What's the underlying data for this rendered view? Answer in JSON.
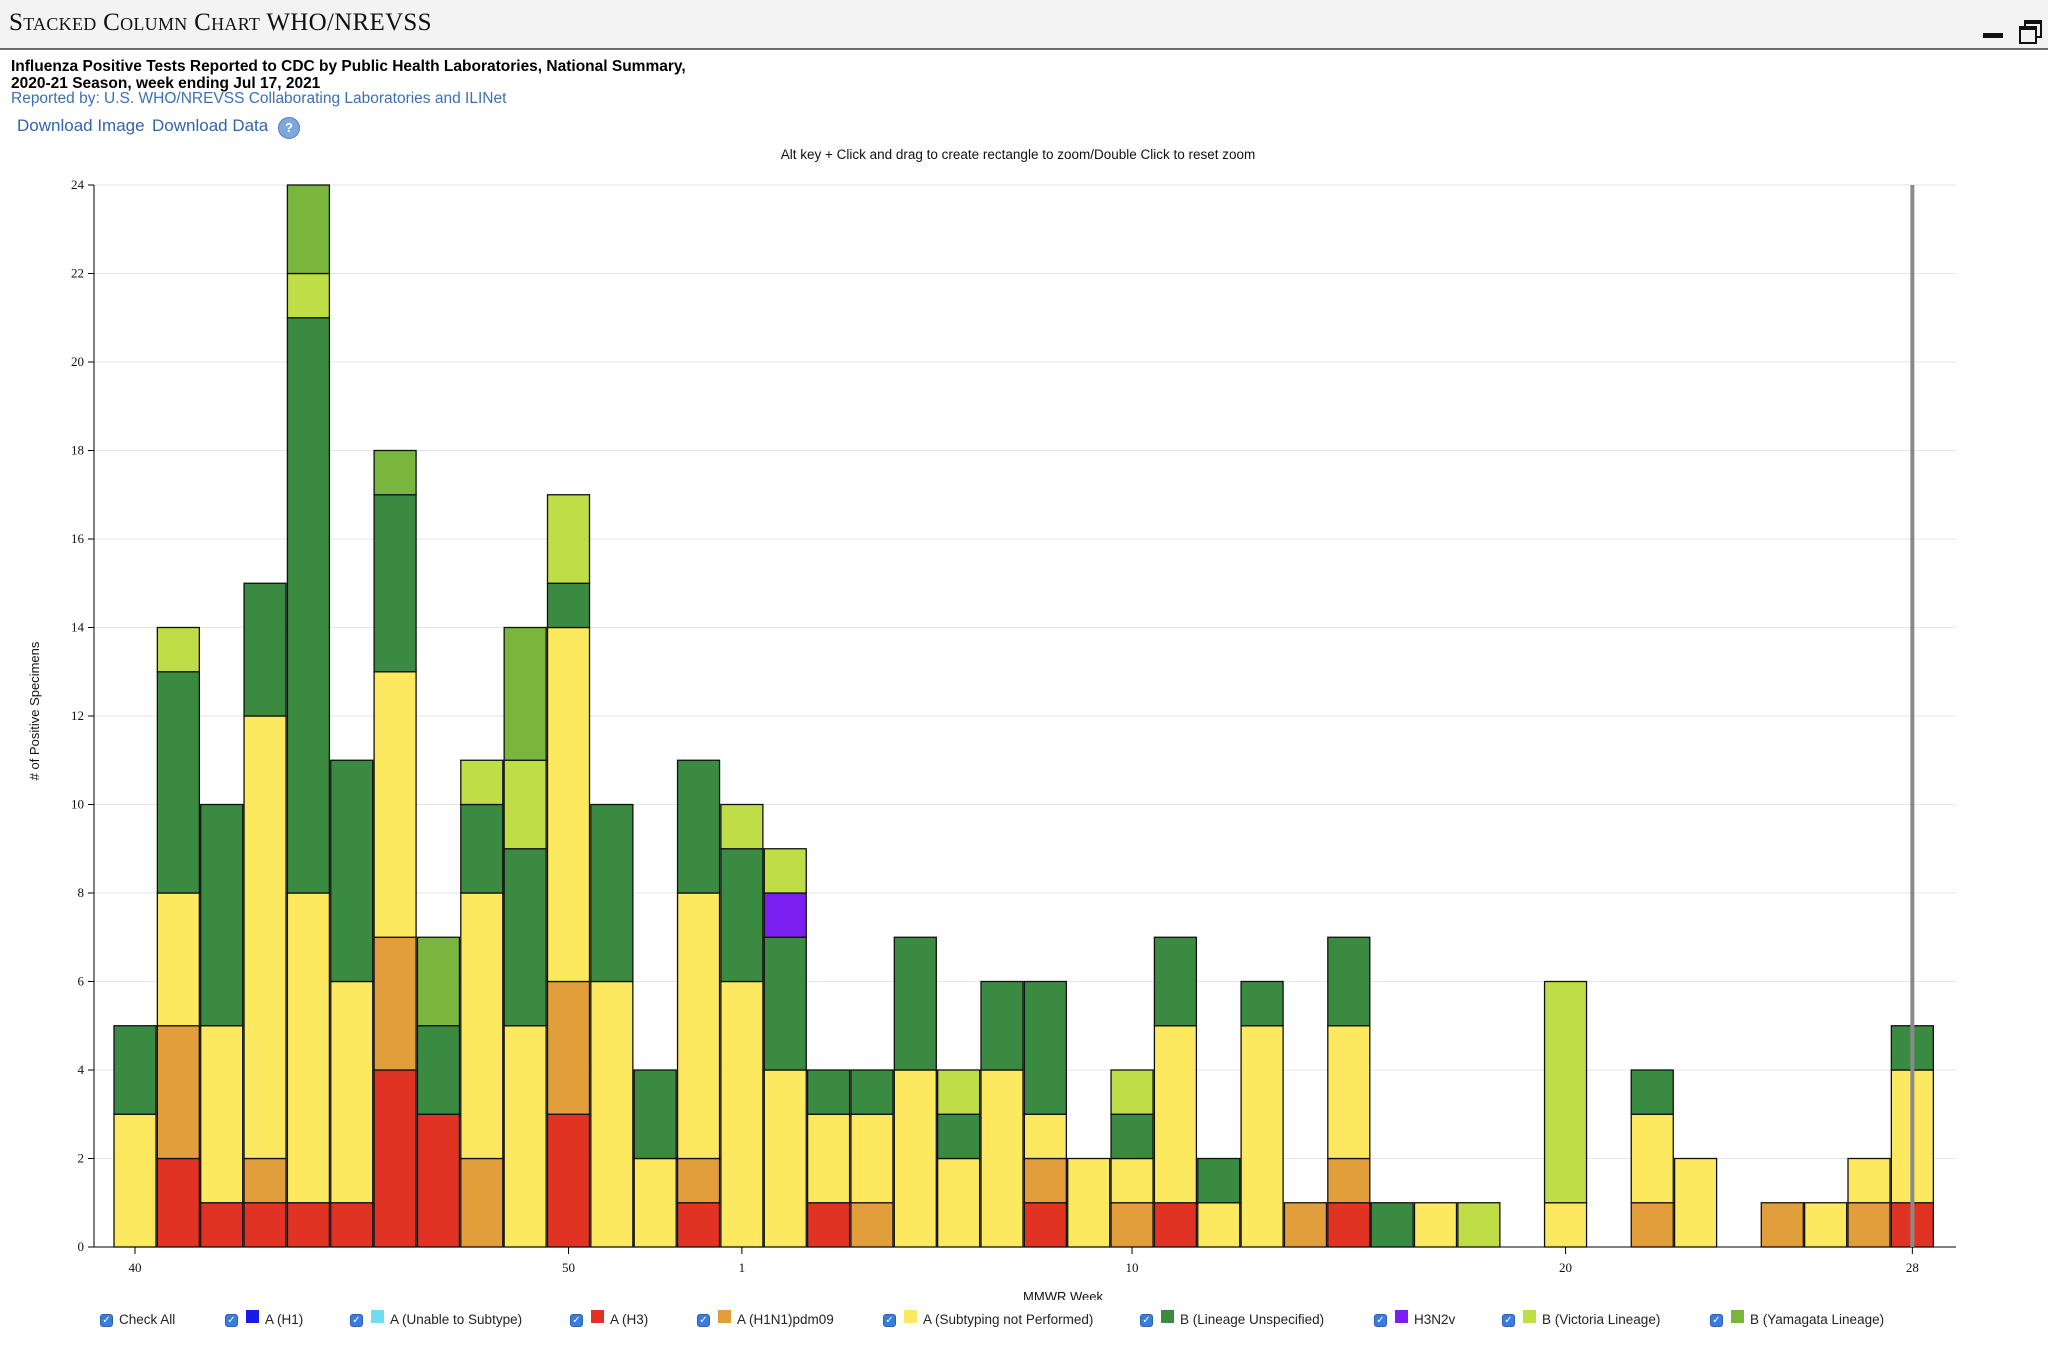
{
  "window": {
    "title": "Stacked Column Chart WHO/NREVSS"
  },
  "header": {
    "heading_line1": "Influenza Positive Tests Reported to CDC by Public Health Laboratories, National Summary,",
    "heading_line2": "2020-21 Season, week ending Jul 17, 2021",
    "subtitle": "Reported by: U.S. WHO/NREVSS Collaborating Laboratories and ILINet",
    "download_image": "Download Image",
    "download_data": "Download Data",
    "help_icon": "?",
    "zoom_hint": "Alt key + Click and drag to create rectangle to zoom/Double Click to reset zoom"
  },
  "legend": [
    {
      "label": "Check All",
      "color": null
    },
    {
      "label": "A (H1)",
      "color": "#1a1ae6"
    },
    {
      "label": "A (Unable to Subtype)",
      "color": "#6fdcf0"
    },
    {
      "label": "A (H3)",
      "color": "#e03323"
    },
    {
      "label": "A (H1N1)pdm09",
      "color": "#e29e3a"
    },
    {
      "label": "A (Subtyping not Performed)",
      "color": "#fde95f"
    },
    {
      "label": "B (Lineage Unspecified)",
      "color": "#3a8a41"
    },
    {
      "label": "H3N2v",
      "color": "#7a1ff0"
    },
    {
      "label": "B (Victoria Lineage)",
      "color": "#bedd46"
    },
    {
      "label": "B (Yamagata Lineage)",
      "color": "#7ab63e"
    }
  ],
  "chart_data": {
    "type": "bar",
    "stacked": true,
    "xlabel": "MMWR Week",
    "ylabel": "# of Positive Specimens",
    "ylim": [
      0,
      24
    ],
    "yticks": [
      0,
      2,
      4,
      6,
      8,
      10,
      12,
      14,
      16,
      18,
      20,
      22,
      24
    ],
    "grid": true,
    "x_tick_labels": [
      "40",
      "50",
      "1",
      "10",
      "20",
      "28"
    ],
    "x_tick_weeks": [
      40,
      50,
      1,
      10,
      20,
      28
    ],
    "current_week_marker": 28,
    "series_order": [
      "A (H3)",
      "A (H1N1)pdm09",
      "A (Subtyping not Performed)",
      "B (Lineage Unspecified)",
      "H3N2v",
      "B (Victoria Lineage)",
      "B (Yamagata Lineage)"
    ],
    "weeks": [
      40,
      41,
      42,
      43,
      44,
      45,
      46,
      47,
      48,
      49,
      50,
      51,
      52,
      53,
      1,
      2,
      3,
      4,
      5,
      6,
      7,
      8,
      9,
      10,
      11,
      12,
      13,
      14,
      15,
      16,
      17,
      18,
      19,
      20,
      21,
      22,
      23,
      24,
      25,
      26,
      27,
      28
    ],
    "series": [
      {
        "name": "A (H3)",
        "values": [
          0,
          2,
          1,
          1,
          1,
          1,
          4,
          3,
          0,
          0,
          3,
          0,
          0,
          1,
          0,
          0,
          1,
          0,
          0,
          0,
          0,
          1,
          0,
          0,
          1,
          0,
          0,
          0,
          1,
          0,
          0,
          0,
          0,
          0,
          0,
          0,
          0,
          0,
          0,
          0,
          0,
          1
        ]
      },
      {
        "name": "A (H1N1)pdm09",
        "values": [
          0,
          3,
          0,
          1,
          0,
          0,
          3,
          0,
          2,
          0,
          3,
          0,
          0,
          1,
          0,
          0,
          0,
          1,
          0,
          0,
          0,
          1,
          0,
          1,
          0,
          0,
          0,
          1,
          1,
          0,
          0,
          0,
          0,
          0,
          0,
          1,
          0,
          0,
          1,
          0,
          1,
          0
        ]
      },
      {
        "name": "A (Subtyping not Performed)",
        "values": [
          3,
          3,
          4,
          10,
          7,
          5,
          6,
          0,
          6,
          5,
          8,
          6,
          2,
          6,
          6,
          4,
          2,
          2,
          4,
          2,
          4,
          1,
          2,
          1,
          4,
          1,
          5,
          0,
          3,
          0,
          1,
          0,
          0,
          1,
          0,
          2,
          2,
          0,
          0,
          1,
          1,
          3
        ]
      },
      {
        "name": "B (Lineage Unspecified)",
        "values": [
          2,
          5,
          5,
          3,
          13,
          5,
          4,
          2,
          2,
          4,
          1,
          4,
          2,
          3,
          3,
          3,
          1,
          1,
          3,
          1,
          2,
          3,
          0,
          1,
          2,
          1,
          1,
          0,
          2,
          1,
          0,
          0,
          0,
          0,
          0,
          1,
          0,
          0,
          0,
          0,
          0,
          1
        ]
      },
      {
        "name": "H3N2v",
        "values": [
          0,
          0,
          0,
          0,
          0,
          0,
          0,
          0,
          0,
          0,
          0,
          0,
          0,
          0,
          0,
          1,
          0,
          0,
          0,
          0,
          0,
          0,
          0,
          0,
          0,
          0,
          0,
          0,
          0,
          0,
          0,
          0,
          0,
          0,
          0,
          0,
          0,
          0,
          0,
          0,
          0,
          0
        ]
      },
      {
        "name": "B (Victoria Lineage)",
        "values": [
          0,
          1,
          0,
          0,
          1,
          0,
          0,
          0,
          1,
          2,
          2,
          0,
          0,
          0,
          1,
          1,
          0,
          0,
          0,
          1,
          0,
          0,
          0,
          1,
          0,
          0,
          0,
          0,
          0,
          0,
          0,
          1,
          0,
          5,
          0,
          0,
          0,
          0,
          0,
          0,
          0,
          0
        ]
      },
      {
        "name": "B (Yamagata Lineage)",
        "values": [
          0,
          0,
          0,
          0,
          2,
          0,
          1,
          2,
          0,
          3,
          0,
          0,
          0,
          0,
          0,
          0,
          0,
          0,
          0,
          0,
          0,
          0,
          0,
          0,
          0,
          0,
          0,
          0,
          0,
          0,
          0,
          0,
          0,
          0,
          0,
          0,
          0,
          0,
          0,
          0,
          0,
          0
        ]
      }
    ]
  }
}
